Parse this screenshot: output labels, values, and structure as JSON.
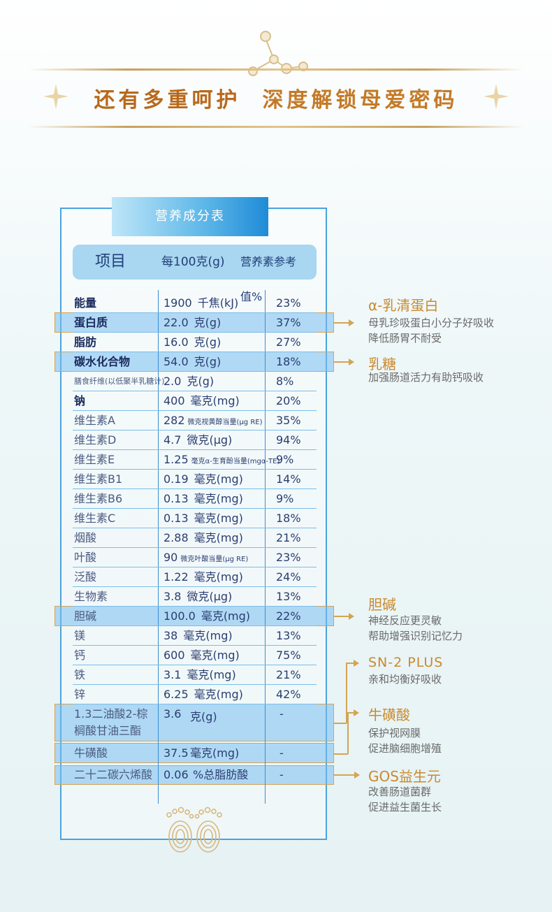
{
  "headline": {
    "part1": "还有多重呵护",
    "part2": "深度解锁母爱密码"
  },
  "table": {
    "title": "营养成分表",
    "headers": {
      "item": "项目",
      "per100": "每100克(g)",
      "nrv": "营养素参考值%"
    },
    "rows": [
      {
        "name": "能量",
        "amount": "1900",
        "unit": "千焦(kJ)",
        "nrv": "23%"
      },
      {
        "name": "蛋白质",
        "amount": "22.0",
        "unit": "克(g)",
        "nrv": "37%"
      },
      {
        "name": "脂肪",
        "amount": "16.0",
        "unit": "克(g)",
        "nrv": "27%"
      },
      {
        "name": "碳水化合物",
        "amount": "54.0",
        "unit": "克(g)",
        "nrv": "18%"
      },
      {
        "name": "膳食纤维(以低聚半乳糖计)",
        "amount": "2.0",
        "unit": "克(g)",
        "nrv": "8%"
      },
      {
        "name": "钠",
        "amount": "400",
        "unit": "毫克(mg)",
        "nrv": "20%"
      },
      {
        "name": "维生素A",
        "amount": "282",
        "unit": "微克视黄醇当量(μg RE)",
        "nrv": "35%"
      },
      {
        "name": "维生素D",
        "amount": "4.7",
        "unit": "微克(μg)",
        "nrv": "94%"
      },
      {
        "name": "维生素E",
        "amount": "1.25",
        "unit": "毫克α-生育酚当量(mgα-TE)",
        "nrv": "9%"
      },
      {
        "name": "维生素B1",
        "amount": "0.19",
        "unit": "毫克(mg)",
        "nrv": "14%"
      },
      {
        "name": "维生素B6",
        "amount": "0.13",
        "unit": "毫克(mg)",
        "nrv": "9%"
      },
      {
        "name": "维生素C",
        "amount": "0.13",
        "unit": "毫克(mg)",
        "nrv": "18%"
      },
      {
        "name": "烟酸",
        "amount": "2.88",
        "unit": "毫克(mg)",
        "nrv": "21%"
      },
      {
        "name": "叶酸",
        "amount": "90",
        "unit": "微克叶酸当量(μg RE)",
        "nrv": "23%"
      },
      {
        "name": "泛酸",
        "amount": "1.22",
        "unit": "毫克(mg)",
        "nrv": "24%"
      },
      {
        "name": "生物素",
        "amount": "3.8",
        "unit": "微克(μg)",
        "nrv": "13%"
      },
      {
        "name": "胆碱",
        "amount": "100.0",
        "unit": "毫克(mg)",
        "nrv": "22%"
      },
      {
        "name": "镁",
        "amount": "38",
        "unit": "毫克(mg)",
        "nrv": "13%"
      },
      {
        "name": "钙",
        "amount": "600",
        "unit": "毫克(mg)",
        "nrv": "75%"
      },
      {
        "name": "铁",
        "amount": "3.1",
        "unit": "毫克(mg)",
        "nrv": "21%"
      },
      {
        "name": "锌",
        "amount": "6.25",
        "unit": "毫克(mg)",
        "nrv": "42%"
      }
    ],
    "opo": {
      "name_line1": "1.3二油酸2-棕",
      "name_line2": "榈酸甘油三酯",
      "amount": "3.6",
      "unit": "克(g)",
      "nrv": "-"
    },
    "taurine": {
      "name": "牛磺酸",
      "amount": "37.5",
      "unit": "毫克(mg)",
      "nrv": "-"
    },
    "dha": {
      "name": "二十二碳六烯酸",
      "amount": "0.06",
      "unit": "%总脂肪酸",
      "nrv": "-"
    }
  },
  "annotations": {
    "alpha": {
      "title": "α-乳清蛋白",
      "line1": "母乳珍吸蛋白小分子好吸收",
      "line2": "降低肠胃不耐受"
    },
    "lactose": {
      "title": "乳糖",
      "line1": "加强肠道活力有助钙吸收"
    },
    "choline": {
      "title": "胆碱",
      "line1": "神经反应更灵敏",
      "line2": "帮助增强识别记忆力"
    },
    "sn2": {
      "title": "SN-2 PLUS",
      "line1": "亲和均衡好吸收"
    },
    "taurine": {
      "title": "牛磺酸",
      "line1": "保护视网膜",
      "line2": "促进脑细胞增殖"
    },
    "gos": {
      "title": "GOS益生元",
      "line1": "改善肠道菌群",
      "line2": "促进益生菌生长"
    }
  }
}
